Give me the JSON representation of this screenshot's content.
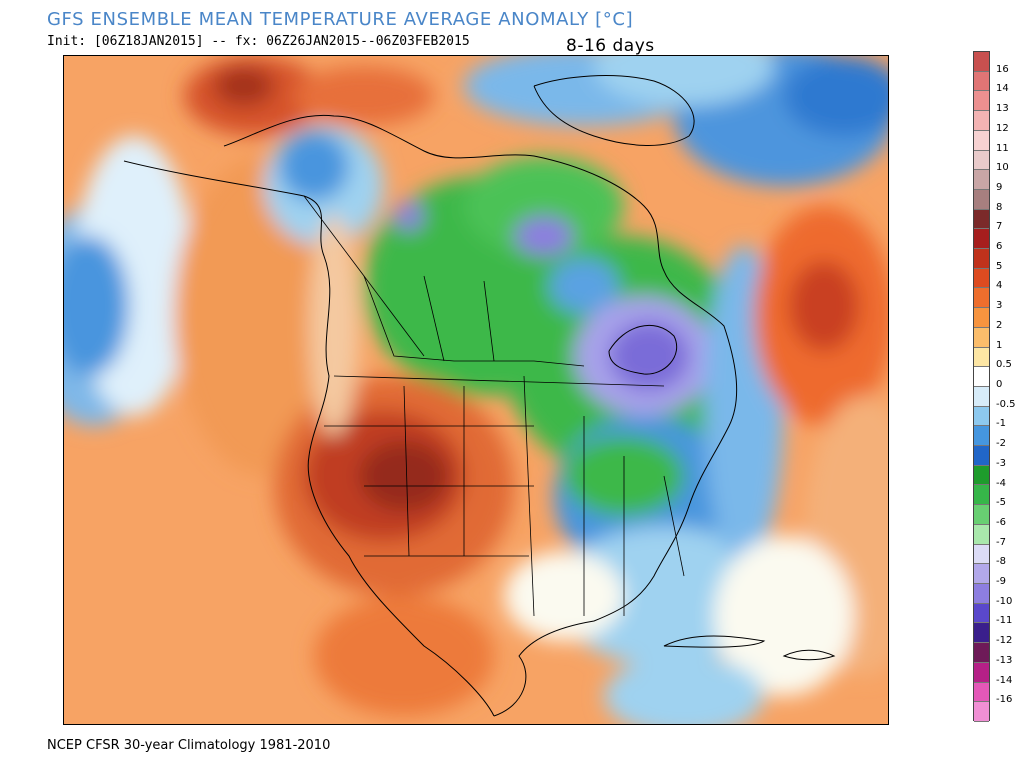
{
  "header": {
    "title": "GFS ENSEMBLE MEAN TEMPERATURE AVERAGE ANOMALY [°C]",
    "init": "Init: [06Z18JAN2015] -- fx: 06Z26JAN2015--06Z03FEB2015",
    "period": "8-16 days"
  },
  "footer": {
    "climatology": "NCEP CFSR 30-year Climatology 1981-2010"
  },
  "colorbar": {
    "labels": [
      "16",
      "14",
      "13",
      "12",
      "11",
      "10",
      "9",
      "8",
      "7",
      "6",
      "5",
      "4",
      "3",
      "2",
      "1",
      "0.5",
      "0",
      "-0.5",
      "-1",
      "-2",
      "-3",
      "-4",
      "-5",
      "-6",
      "-7",
      "-8",
      "-9",
      "-10",
      "-11",
      "-12",
      "-13",
      "-14",
      "-16"
    ],
    "colors": [
      "#c8504f",
      "#e07575",
      "#ec9090",
      "#f3b3b3",
      "#f7d2d2",
      "#e9cbcb",
      "#c9a6a6",
      "#a77f7f",
      "#7b2a2a",
      "#a61e1e",
      "#c0321c",
      "#dd4b20",
      "#ee6e2d",
      "#f7943f",
      "#fbbd6b",
      "#fde6a4",
      "#ffffff",
      "#d7ecf9",
      "#8dc9ef",
      "#4596df",
      "#2166c8",
      "#1e9c2c",
      "#36b649",
      "#68cf72",
      "#a9e8ac",
      "#dcdcf6",
      "#b2a8ea",
      "#8d7ee0",
      "#5a48cc",
      "#3a1f8c",
      "#6e1a58",
      "#b52087",
      "#e458b8",
      "#f08fd4"
    ]
  },
  "map": {
    "colors": {
      "ocean_warm": "#f6c08b",
      "warm": "#ee7a3c",
      "very_warm": "#c93f22",
      "hot": "#9a2a1c",
      "cool": "#9fd2f0",
      "cold": "#3f8fdb",
      "green": "#3cb84a",
      "light_green": "#8fde84",
      "purple": "#8d7ee0",
      "neutral": "#fbfaf0"
    }
  }
}
